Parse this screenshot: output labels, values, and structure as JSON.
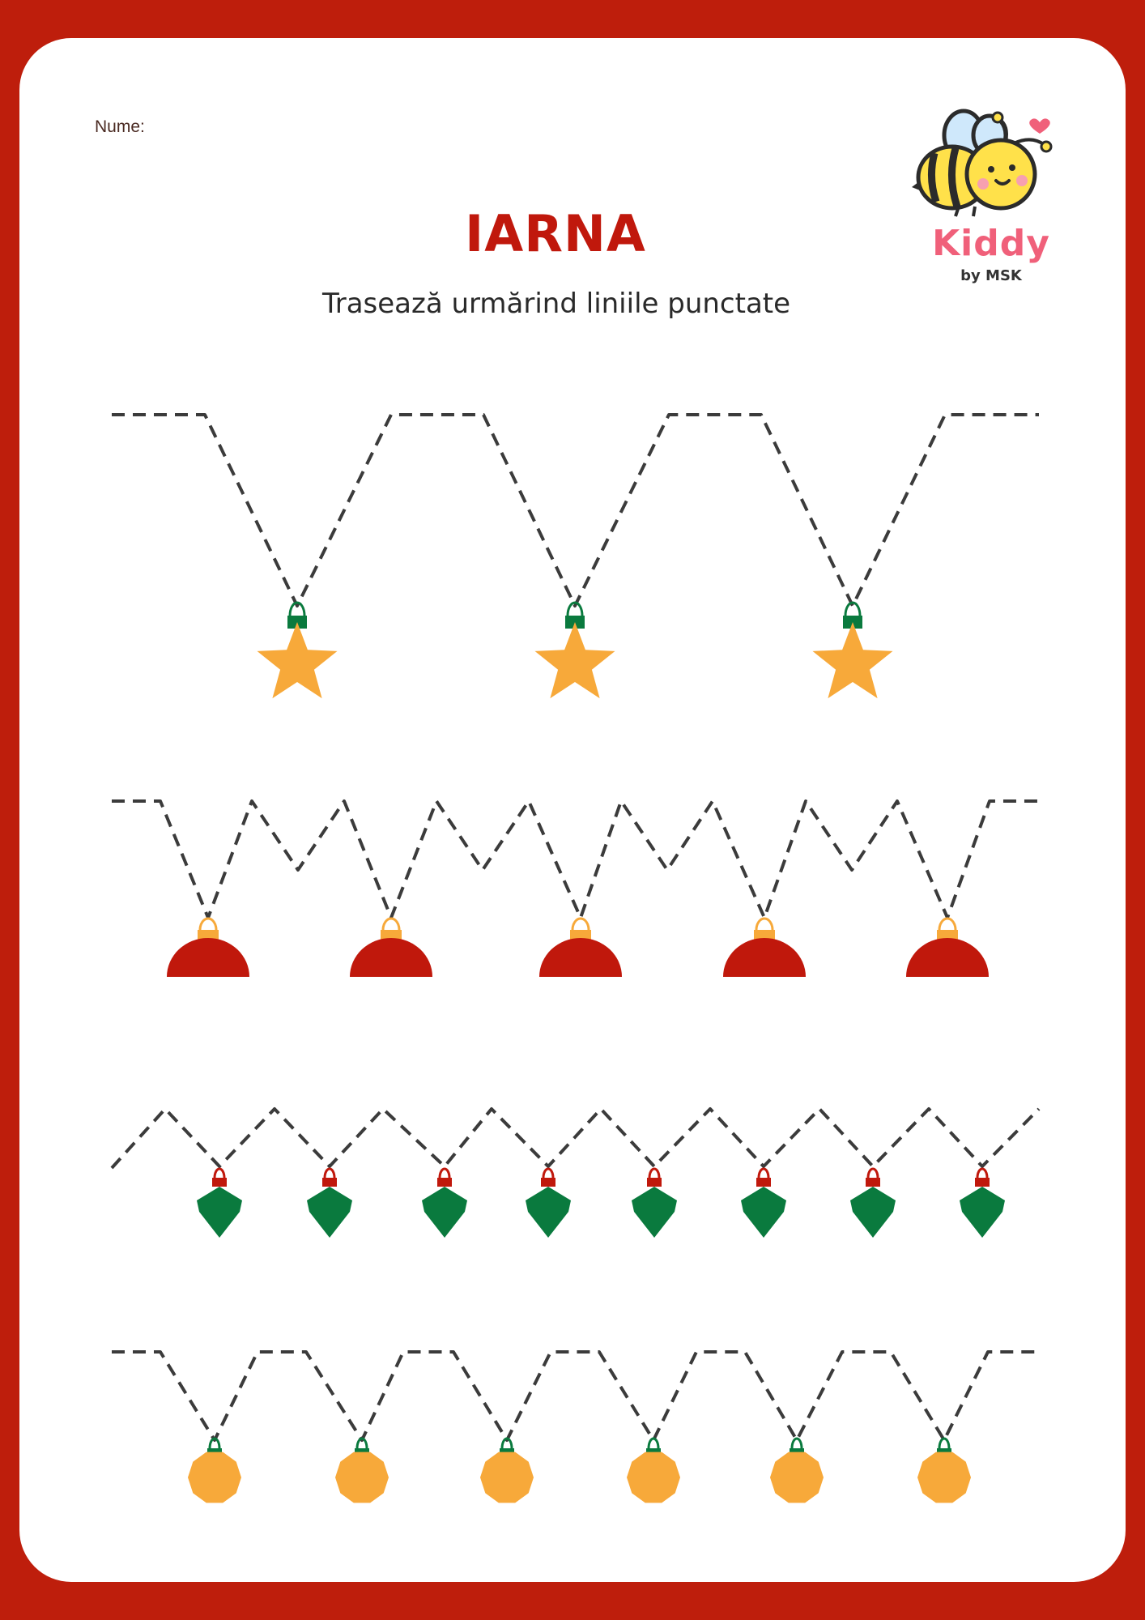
{
  "worksheet": {
    "name_label": "Nume:",
    "title": "IARNA",
    "subtitle": "Trasează urmărind liniile punctate",
    "logo": {
      "word": "Kiddy",
      "byline": "by MSK"
    }
  },
  "colors": {
    "frame": "#be1e0c",
    "title": "#c0180c",
    "dash": "#3b3b3b",
    "orange": "#f7a93a",
    "red": "#c0180c",
    "green": "#0a7a3e",
    "logo_pink": "#f0607a"
  },
  "rows": [
    {
      "ornament": "star",
      "count": 3,
      "ornament_color": "#f7a93a",
      "cap_color": "#0a7a3e"
    },
    {
      "ornament": "half-dome",
      "count": 5,
      "ornament_color": "#c0180c",
      "cap_color": "#f7a93a"
    },
    {
      "ornament": "diamond-drop",
      "count": 8,
      "ornament_color": "#0a7a3e",
      "cap_color": "#c0180c"
    },
    {
      "ornament": "round-bauble",
      "count": 6,
      "ornament_color": "#f7a93a",
      "cap_color": "#0a7a3e"
    }
  ]
}
